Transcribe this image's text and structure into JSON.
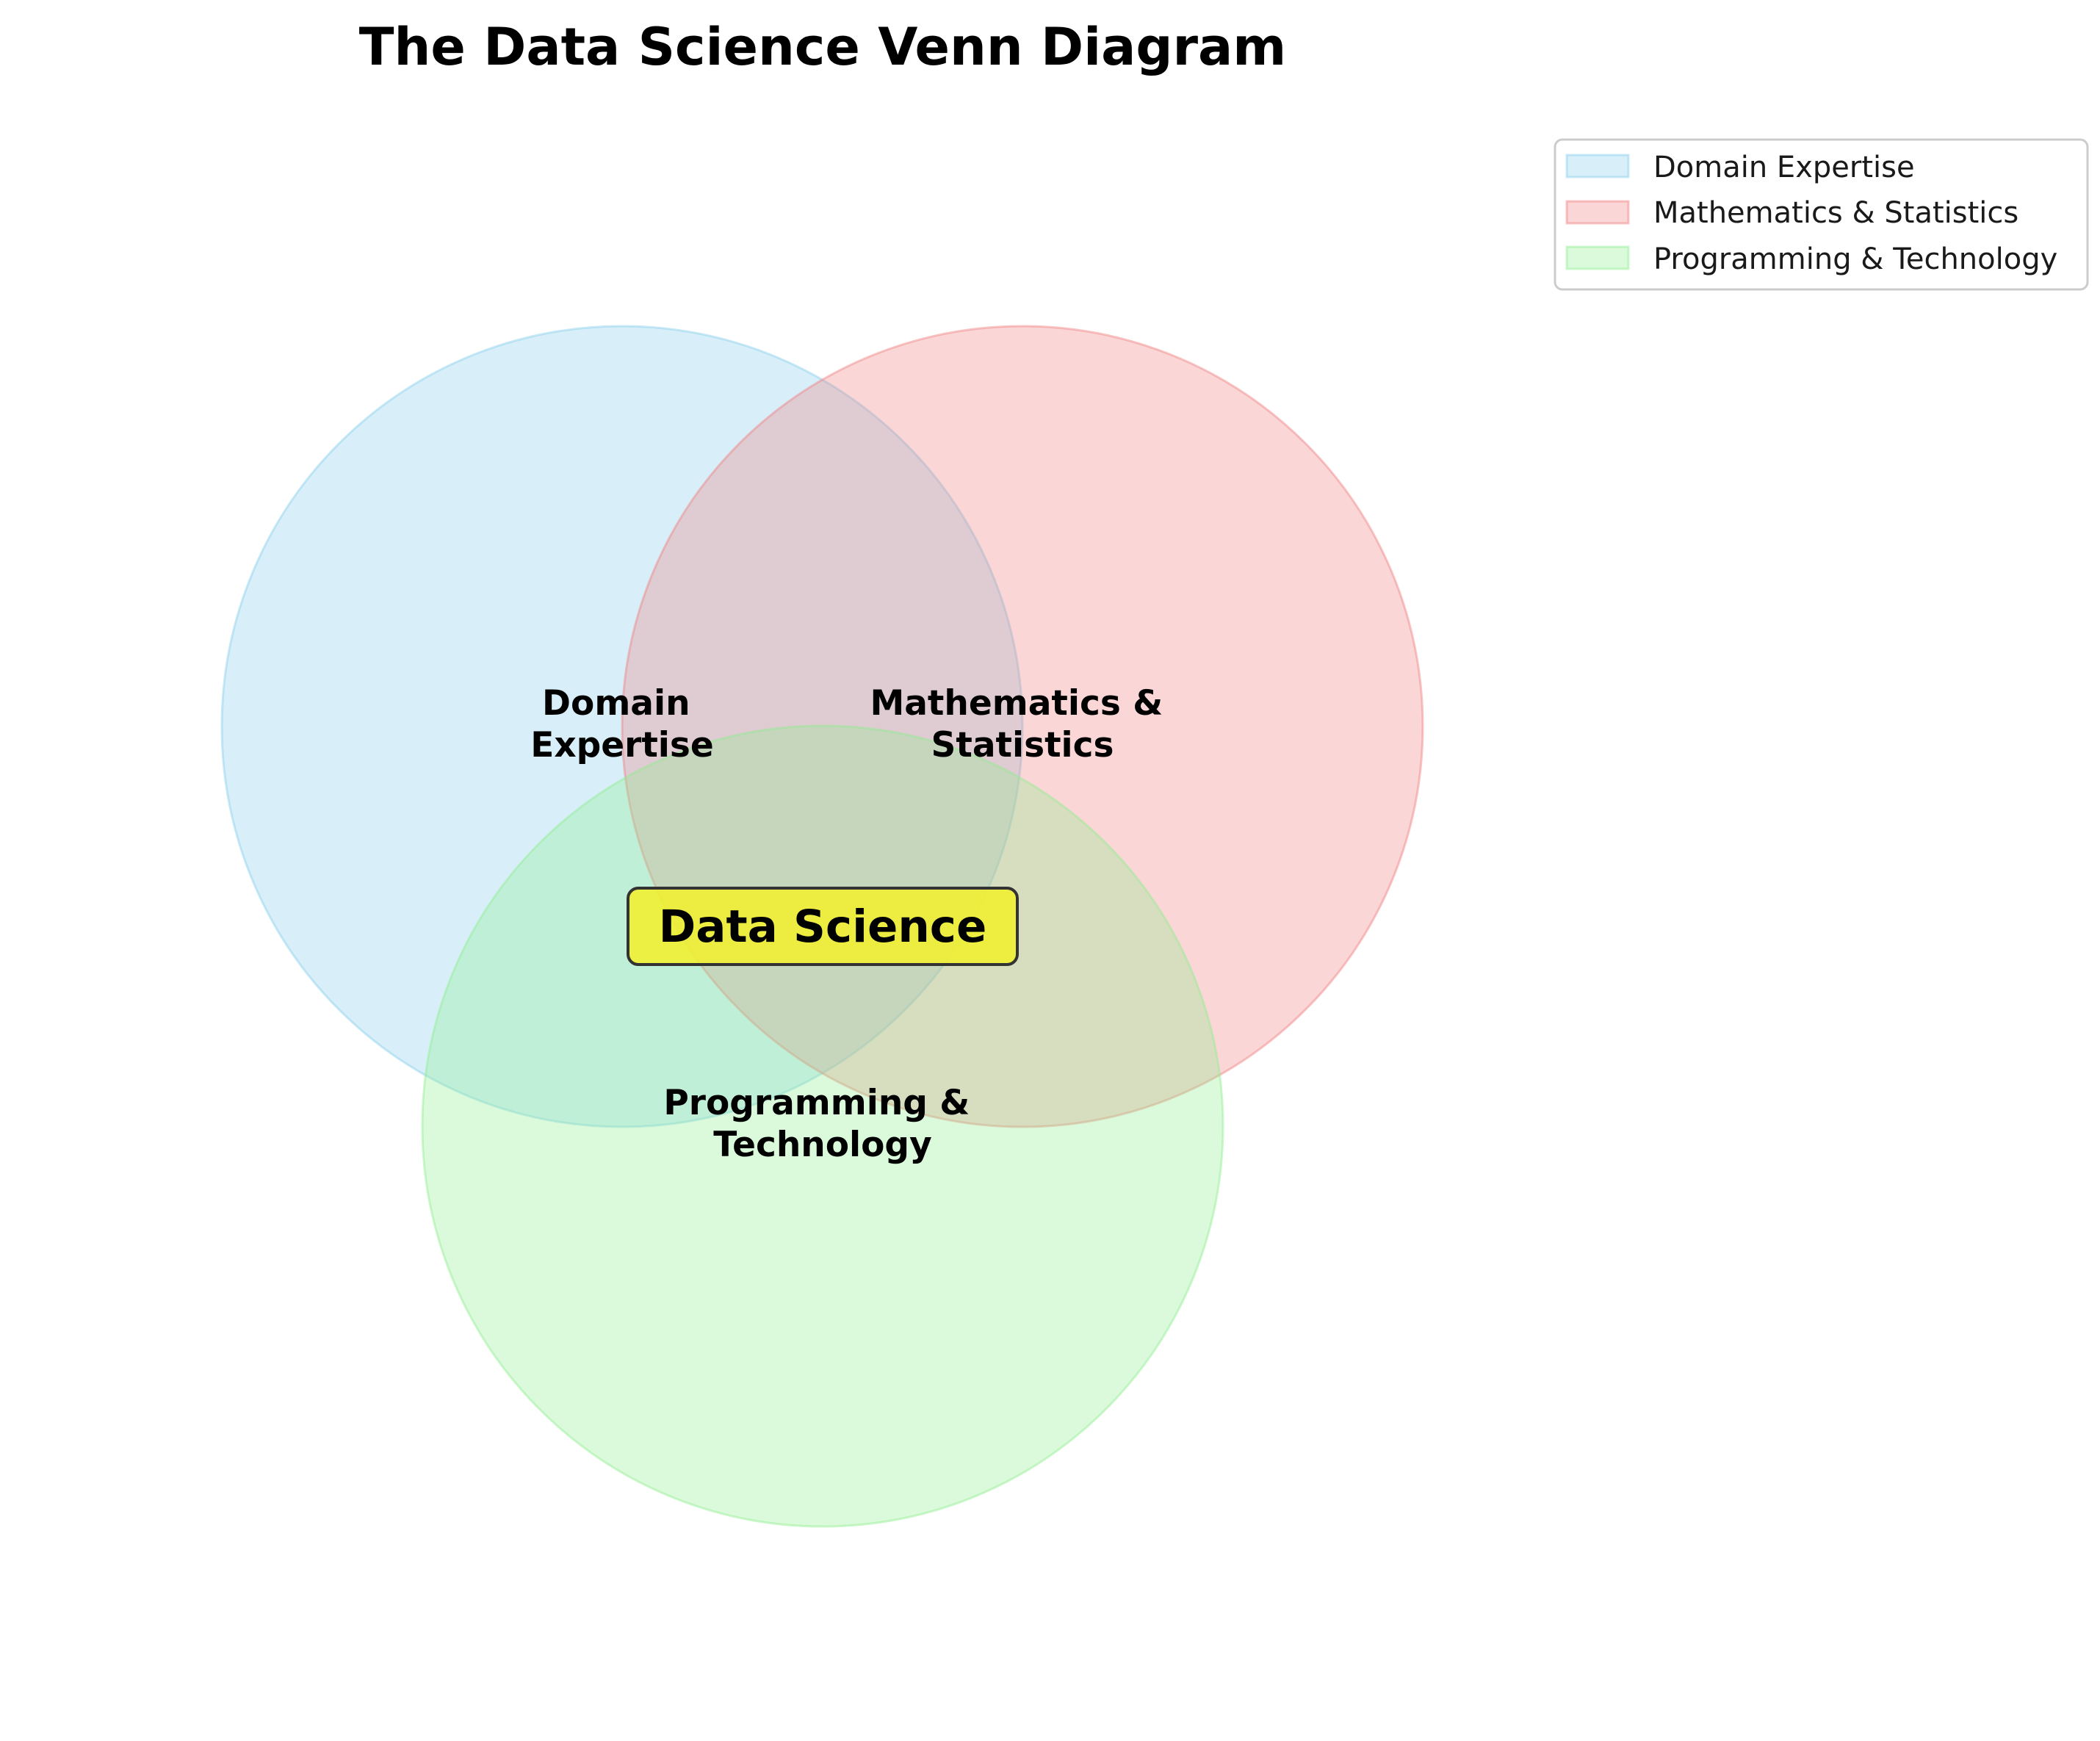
{
  "title": "The Data Science Venn Diagram",
  "center_label": "Data Science",
  "center_box_color": "#F0F032",
  "sets": [
    {
      "name": "Domain Expertise",
      "label_lines": [
        "Domain",
        "Expertise"
      ],
      "color": "#87CEEB"
    },
    {
      "name": "Mathematics & Statistics",
      "label_lines": [
        "Mathematics &",
        "Statistics"
      ],
      "color": "#F08080"
    },
    {
      "name": "Programming & Technology",
      "label_lines": [
        "Programming &",
        "Technology"
      ],
      "color": "#90EE90"
    }
  ],
  "legend": {
    "placement": "upper-right",
    "entries": [
      "Domain Expertise",
      "Mathematics & Statistics",
      "Programming & Technology"
    ]
  }
}
